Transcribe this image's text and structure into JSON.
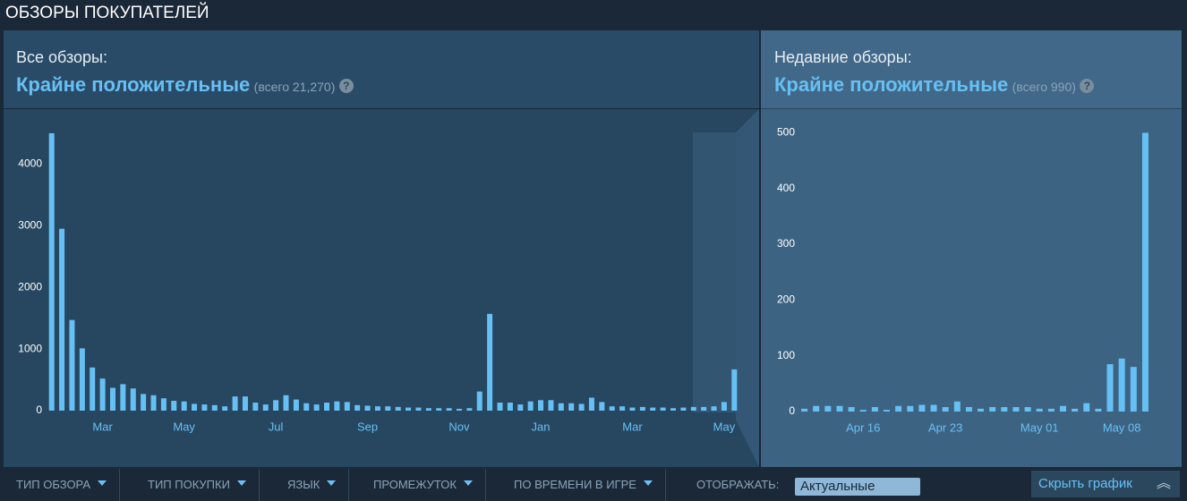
{
  "header": {
    "title": "ОБЗОРЫ ПОКУПАТЕЛЕЙ"
  },
  "all_reviews": {
    "label": "Все обзоры:",
    "rating": "Крайне положительные",
    "total": "(всего 21,270)"
  },
  "recent_reviews": {
    "label": "Недавние обзоры:",
    "rating": "Крайне положительные",
    "total": "(всего 990)"
  },
  "filters": [
    "ТИП ОБЗОРА",
    "ТИП ПОКУПКИ",
    "ЯЗЫК",
    "ПРОМЕЖУТОК",
    "ПО ВРЕМЕНИ В ИГРЕ"
  ],
  "display": {
    "label": "ОТОБРАЖАТЬ:",
    "value": "Актуальные"
  },
  "hide_button": "Скрыть график",
  "chart_data": [
    {
      "type": "bar",
      "color": "#66c0f4",
      "categories": [
        null,
        null,
        null,
        null,
        null,
        "Mar",
        null,
        null,
        null,
        null,
        null,
        null,
        null,
        "May",
        null,
        null,
        null,
        null,
        null,
        null,
        null,
        null,
        "Jul",
        null,
        null,
        null,
        null,
        null,
        null,
        null,
        null,
        "Sep",
        null,
        null,
        null,
        null,
        null,
        null,
        null,
        null,
        "Nov",
        null,
        null,
        null,
        null,
        null,
        null,
        null,
        "Jan",
        null,
        null,
        null,
        null,
        null,
        null,
        null,
        null,
        "Mar",
        null,
        null,
        null,
        null,
        null,
        null,
        null,
        null,
        "May",
        null
      ],
      "values": [
        4500,
        2950,
        1470,
        1010,
        700,
        520,
        370,
        430,
        360,
        270,
        250,
        200,
        160,
        150,
        110,
        100,
        90,
        70,
        230,
        230,
        130,
        100,
        170,
        250,
        180,
        120,
        100,
        130,
        150,
        140,
        90,
        80,
        70,
        70,
        60,
        50,
        50,
        40,
        40,
        40,
        30,
        40,
        310,
        1570,
        130,
        130,
        100,
        150,
        170,
        170,
        120,
        120,
        110,
        210,
        140,
        70,
        70,
        50,
        60,
        50,
        50,
        40,
        50,
        60,
        60,
        70,
        140,
        670
      ],
      "ylim": [
        0,
        4600
      ],
      "yticks": [
        0,
        1000,
        2000,
        3000,
        4000
      ]
    },
    {
      "type": "bar",
      "color": "#66c0f4",
      "categories": [
        null,
        null,
        null,
        null,
        null,
        "Apr 16",
        null,
        null,
        null,
        null,
        null,
        null,
        "Apr 23",
        null,
        null,
        null,
        null,
        null,
        null,
        null,
        "May 01",
        null,
        null,
        null,
        null,
        null,
        null,
        "May 08",
        null,
        null
      ],
      "values": [
        5,
        10,
        10,
        10,
        8,
        3,
        8,
        3,
        10,
        10,
        12,
        12,
        8,
        18,
        8,
        5,
        8,
        8,
        8,
        8,
        5,
        5,
        10,
        5,
        15,
        5,
        85,
        95,
        80,
        500
      ],
      "ylim": [
        0,
        520
      ],
      "yticks": [
        0,
        100,
        200,
        300,
        400,
        500
      ]
    }
  ]
}
